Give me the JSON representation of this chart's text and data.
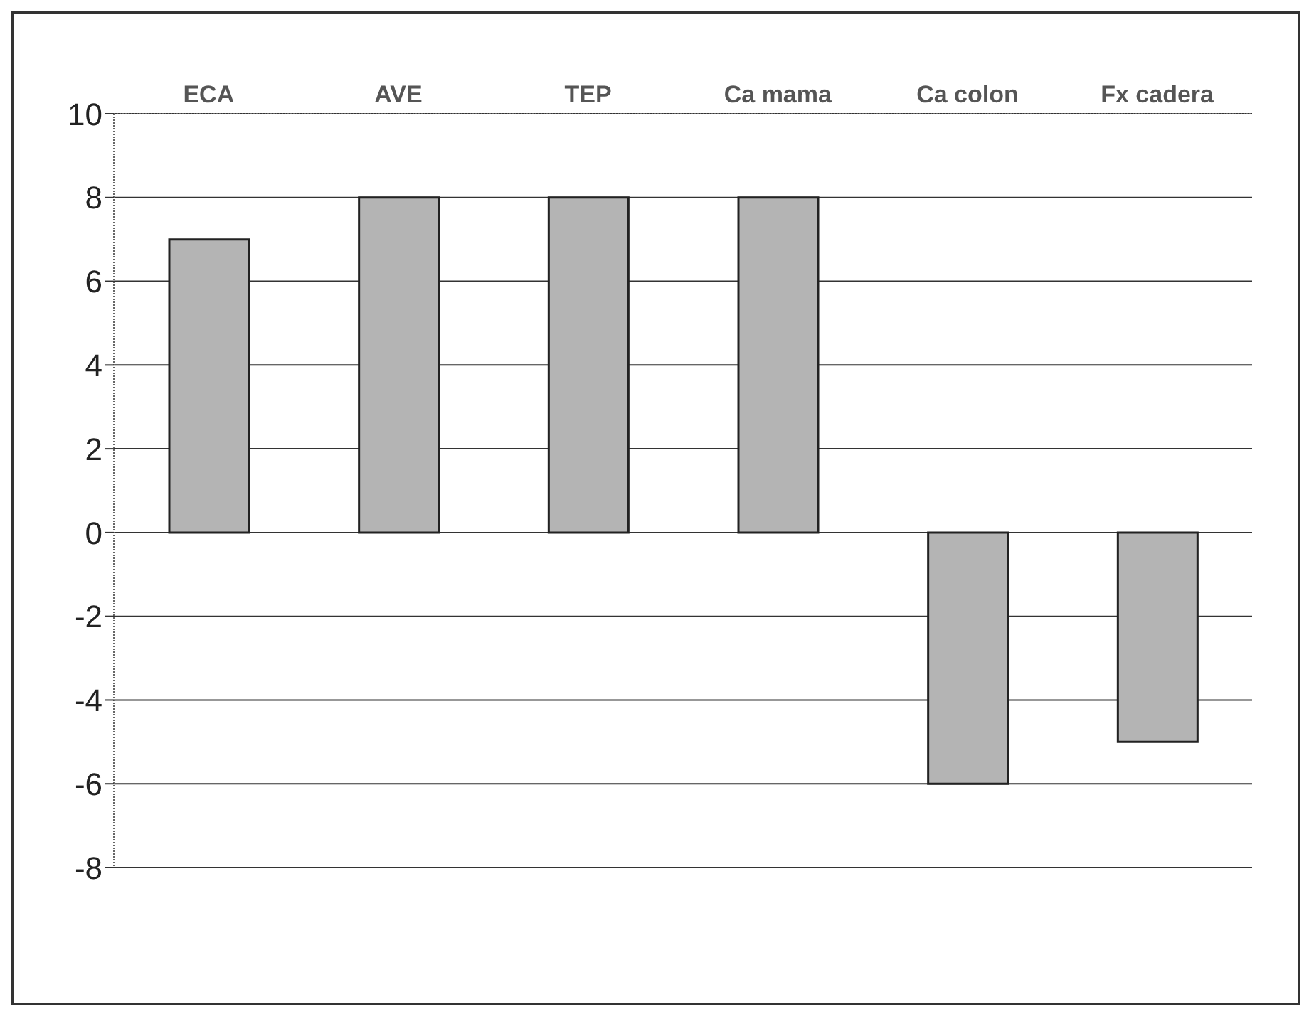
{
  "chart_data": {
    "type": "bar",
    "categories": [
      "ECA",
      "AVE",
      "TEP",
      "Ca mama",
      "Ca colon",
      "Fx cadera"
    ],
    "values": [
      7,
      8,
      8,
      8,
      -6,
      -5
    ],
    "color": "#b4b4b4",
    "ylim": [
      -8,
      10
    ],
    "yticks": [
      -8,
      -6,
      -4,
      -2,
      0,
      2,
      4,
      6,
      8,
      10
    ],
    "grid": "y"
  }
}
